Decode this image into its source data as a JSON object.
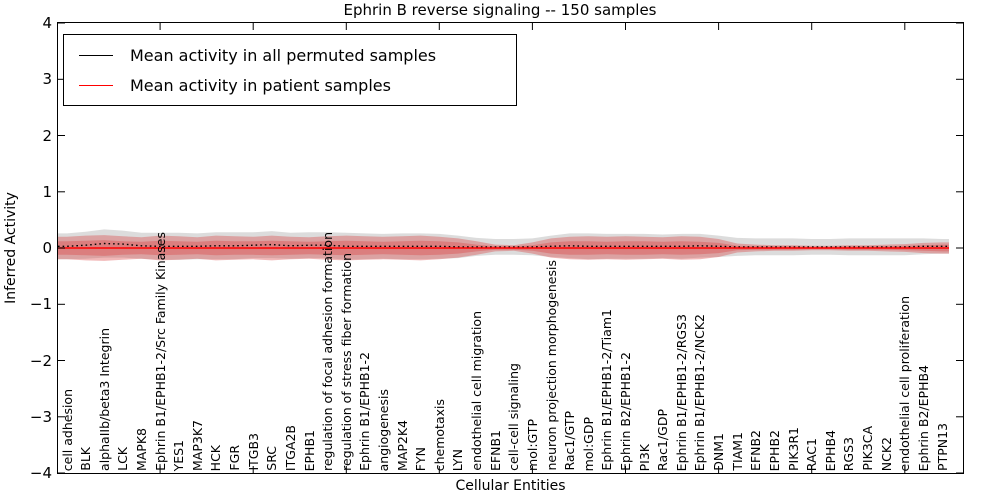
{
  "chart_data": {
    "type": "line",
    "title": "Ephrin B reverse signaling -- 150 samples",
    "xlabel": "Cellular Entities",
    "ylabel": "Inferred Activity",
    "ylim": [
      -4,
      4
    ],
    "ytick_labels": [
      "4",
      "3",
      "2",
      "1",
      "0",
      "−1",
      "−2",
      "−3",
      "−4"
    ],
    "grid": false,
    "legend_position": "upper left",
    "x_major_tick_every": 5,
    "x_categories": [
      "cell adhesion",
      "BLK",
      "alphaIIb/beta3 Integrin",
      "LCK",
      "MAPK8",
      "Ephrin B1/EPHB1-2/Src Family Kinases",
      "YES1",
      "MAP3K7",
      "HCK",
      "FGR",
      "ITGB3",
      "SRC",
      "ITGA2B",
      "EPHB1",
      "regulation of focal adhesion formation",
      "regulation of stress fiber formation",
      "Ephrin B1/EPHB1-2",
      "angiogenesis",
      "MAP2K4",
      "FYN",
      "chemotaxis",
      "LYN",
      "endothelial cell migration",
      "EFNB1",
      "cell-cell signaling",
      "mol:GTP",
      "neuron projection morphogenesis",
      "Rac1/GTP",
      "mol:GDP",
      "Ephrin B1/EPHB1-2/Tiam1",
      "Ephrin B2/EPHB1-2",
      "PI3K",
      "Rac1/GDP",
      "Ephrin B1/EPHB1-2/RGS3",
      "Ephrin B1/EPHB1-2/NCK2",
      "DNM1",
      "TIAM1",
      "EFNB2",
      "EPHB2",
      "PIK3R1",
      "RAC1",
      "EPHB4",
      "RGS3",
      "PIK3CA",
      "NCK2",
      "endothelial cell proliferation",
      "Ephrin B2/EPHB4",
      "PTPN13"
    ],
    "series": [
      {
        "name": "Mean activity in all permuted samples",
        "color": "#000000",
        "line_style": "dotted",
        "values": [
          0.03,
          0.05,
          0.08,
          0.07,
          0.04,
          0.03,
          0.03,
          0.03,
          0.04,
          0.04,
          0.05,
          0.06,
          0.04,
          0.05,
          0.05,
          0.03,
          0.03,
          0.03,
          0.03,
          0.03,
          0.03,
          0.02,
          0.02,
          0.02,
          0.02,
          0.02,
          0.03,
          0.04,
          0.03,
          0.03,
          0.03,
          0.03,
          0.03,
          0.03,
          0.04,
          0.03,
          0.02,
          0.02,
          0.02,
          0.02,
          0.02,
          0.02,
          0.02,
          0.02,
          0.02,
          0.02,
          0.03,
          0.03
        ]
      },
      {
        "name": "Mean activity in patient samples",
        "color": "#ff0000",
        "line_style": "solid",
        "values": [
          0,
          0,
          0,
          0,
          0,
          0,
          0,
          0,
          0,
          0,
          0,
          0,
          0,
          0,
          0,
          0,
          0,
          0,
          0,
          0,
          0,
          0,
          0,
          0,
          0,
          0,
          0,
          0,
          0,
          0,
          0,
          0,
          0,
          0,
          0,
          0,
          0,
          0,
          0,
          0,
          0,
          0,
          0,
          0,
          0,
          0,
          0,
          0
        ]
      }
    ],
    "bands": [
      {
        "name": "permuted-sample-spread",
        "color": "#8c8c8c",
        "alpha": 0.3,
        "center_series": 0,
        "half_width": [
          0.23,
          0.24,
          0.25,
          0.24,
          0.23,
          0.24,
          0.24,
          0.23,
          0.24,
          0.24,
          0.23,
          0.24,
          0.23,
          0.23,
          0.23,
          0.24,
          0.23,
          0.22,
          0.23,
          0.23,
          0.22,
          0.2,
          0.16,
          0.14,
          0.14,
          0.15,
          0.19,
          0.22,
          0.23,
          0.22,
          0.22,
          0.22,
          0.21,
          0.22,
          0.21,
          0.19,
          0.16,
          0.15,
          0.15,
          0.15,
          0.14,
          0.14,
          0.15,
          0.15,
          0.15,
          0.15,
          0.14,
          0.13
        ]
      },
      {
        "name": "patient-sample-spread-outer",
        "color": "#db4444",
        "alpha": 0.38,
        "center_series": 1,
        "half_width": [
          0.2,
          0.22,
          0.23,
          0.21,
          0.19,
          0.22,
          0.21,
          0.19,
          0.22,
          0.21,
          0.2,
          0.22,
          0.2,
          0.19,
          0.21,
          0.22,
          0.21,
          0.2,
          0.21,
          0.22,
          0.2,
          0.17,
          0.12,
          0.06,
          0.05,
          0.1,
          0.17,
          0.2,
          0.21,
          0.2,
          0.21,
          0.2,
          0.19,
          0.21,
          0.2,
          0.16,
          0.08,
          0.06,
          0.05,
          0.05,
          0.04,
          0.04,
          0.05,
          0.05,
          0.06,
          0.07,
          0.09,
          0.1
        ]
      },
      {
        "name": "patient-sample-spread-inner",
        "color": "#db4444",
        "alpha": 0.38,
        "center_series": 1,
        "half_width": [
          0.12,
          0.13,
          0.14,
          0.12,
          0.11,
          0.13,
          0.12,
          0.11,
          0.13,
          0.12,
          0.12,
          0.13,
          0.12,
          0.11,
          0.12,
          0.13,
          0.12,
          0.11,
          0.12,
          0.13,
          0.12,
          0.1,
          0.06,
          0.03,
          0.03,
          0.05,
          0.1,
          0.12,
          0.12,
          0.11,
          0.12,
          0.12,
          0.11,
          0.12,
          0.11,
          0.09,
          0.04,
          0.03,
          0.03,
          0.03,
          0.02,
          0.02,
          0.03,
          0.03,
          0.03,
          0.04,
          0.05,
          0.06
        ]
      }
    ]
  }
}
